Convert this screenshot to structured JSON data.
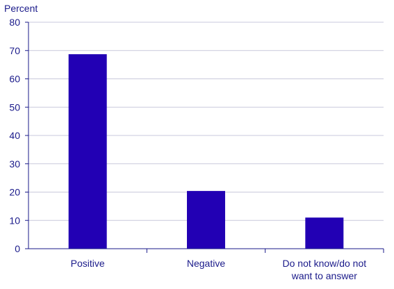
{
  "chart_data": {
    "type": "bar",
    "title": "",
    "ylabel": "Percent",
    "xlabel": "",
    "categories": [
      "Positive",
      "Negative",
      "Do not know/do not want to answer"
    ],
    "category_lines": [
      [
        "Positive"
      ],
      [
        "Negative"
      ],
      [
        "Do not know/do not",
        "want to answer"
      ]
    ],
    "values": [
      68.7,
      20.4,
      11.0
    ],
    "ylim": [
      0,
      80
    ],
    "yticks": [
      0,
      10,
      20,
      30,
      40,
      50,
      60,
      70,
      80
    ],
    "grid": true,
    "legend": "none",
    "colors": {
      "bar": "#2200b4",
      "text": "#1a1a8a",
      "grid": "#c9c9dc"
    }
  }
}
